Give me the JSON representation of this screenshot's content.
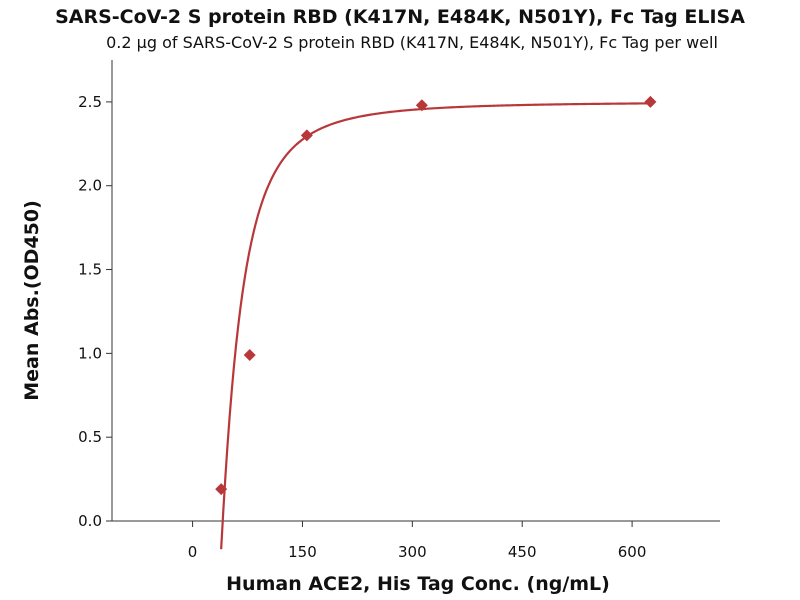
{
  "chart_data": {
    "type": "scatter",
    "title": "SARS-CoV-2 S protein RBD (K417N, E484K, N501Y), Fc Tag ELISA",
    "subtitle": "0.2 µg of SARS-CoV-2 S protein RBD (K417N, E484K, N501Y), Fc Tag per well",
    "xlabel": "Human ACE2, His Tag Conc. (ng/mL)",
    "ylabel": "Mean Abs.(OD450)",
    "xlim": [
      -110,
      720
    ],
    "ylim": [
      0,
      2.75
    ],
    "xticks": [
      0,
      150,
      300,
      450,
      600
    ],
    "yticks": [
      0.0,
      0.5,
      1.0,
      1.5,
      2.0,
      2.5
    ],
    "x_tick_labels": [
      "0",
      "150",
      "300",
      "450",
      "600"
    ],
    "y_tick_labels": [
      "0.0",
      "0.5",
      "1.0",
      "1.5",
      "2.0",
      "2.5"
    ],
    "grid": false,
    "series": [
      {
        "x": [
          39,
          78,
          156,
          313,
          625
        ],
        "y": [
          0.19,
          0.99,
          2.3,
          2.48,
          2.5
        ],
        "marker": "diamond",
        "color": "#b8383a"
      }
    ],
    "fit_curve": {
      "type": "4PL",
      "min": -3.0,
      "max": 2.5,
      "ec50": 38,
      "hill": 2.3,
      "x_range": [
        39,
        625
      ],
      "color": "#b8383a"
    }
  }
}
